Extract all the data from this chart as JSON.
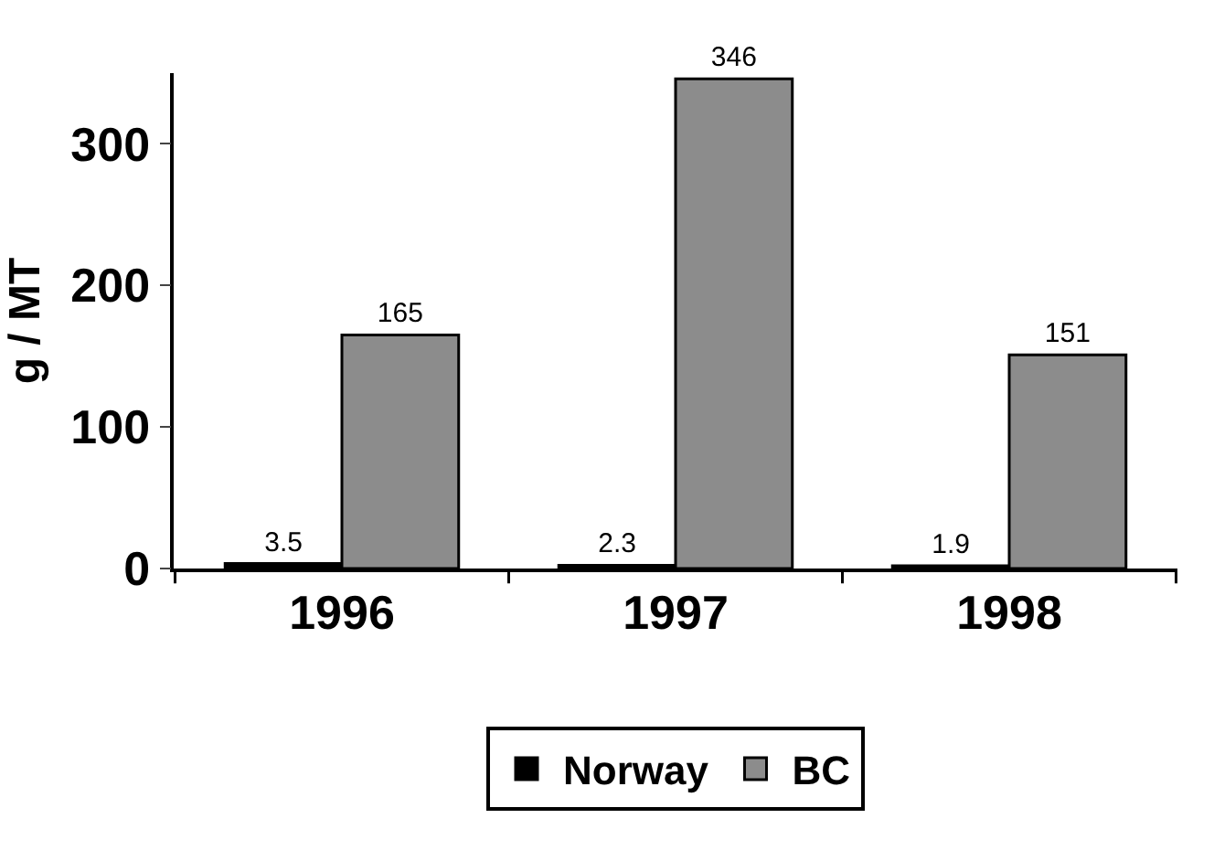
{
  "chart_data": {
    "type": "bar",
    "ylabel": "g / MT",
    "categories": [
      "1996",
      "1997",
      "1998"
    ],
    "series": [
      {
        "name": "Norway",
        "color": "#000000",
        "values": [
          3.5,
          2.3,
          1.9
        ]
      },
      {
        "name": "BC",
        "color": "#8c8c8c",
        "values": [
          165,
          346,
          151
        ]
      }
    ],
    "ylim": [
      0,
      350
    ],
    "yticks": [
      0,
      100,
      200,
      300
    ],
    "data_labels": true,
    "grid": false,
    "legend": "bottom"
  }
}
